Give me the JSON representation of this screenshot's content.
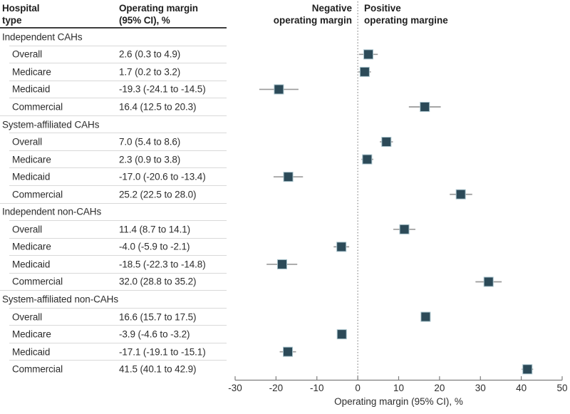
{
  "figure": {
    "table": {
      "header_col1": "Hospital\ntype",
      "header_col2": "Operating margin\n(95% CI), %"
    },
    "annotations": {
      "negative_label": "Negative\noperating margin",
      "positive_label": "Positive\noperating margine"
    }
  },
  "chart_data": {
    "type": "scatter",
    "subtype": "forest-plot",
    "title": "",
    "xlabel": "Operating margin (95% CI), %",
    "xlim": [
      -30,
      50
    ],
    "xticks": [
      -30,
      -20,
      -10,
      0,
      10,
      20,
      30,
      40,
      50
    ],
    "reference_line_x": 0,
    "grid": false,
    "legend": false,
    "marker_color": "#2C4A58",
    "marker_border_color": "#A7C2CB",
    "ci_color": "#9A9A9A",
    "groups": [
      {
        "label": "Independent CAHs",
        "rows": [
          {
            "label": "Overall",
            "text": "2.6 (0.3 to 4.9)",
            "value": 2.6,
            "ci": [
              0.3,
              4.9
            ]
          },
          {
            "label": "Medicare",
            "text": "1.7 (0.2 to 3.2)",
            "value": 1.7,
            "ci": [
              0.2,
              3.2
            ]
          },
          {
            "label": "Medicaid",
            "text": "-19.3 (-24.1 to -14.5)",
            "value": -19.3,
            "ci": [
              -24.1,
              -14.5
            ]
          },
          {
            "label": "Commercial",
            "text": "16.4 (12.5 to 20.3)",
            "value": 16.4,
            "ci": [
              12.5,
              20.3
            ]
          }
        ]
      },
      {
        "label": "System-affiliated CAHs",
        "rows": [
          {
            "label": "Overall",
            "text": "7.0 (5.4 to 8.6)",
            "value": 7.0,
            "ci": [
              5.4,
              8.6
            ]
          },
          {
            "label": "Medicare",
            "text": "2.3 (0.9 to 3.8)",
            "value": 2.3,
            "ci": [
              0.9,
              3.8
            ]
          },
          {
            "label": "Medicaid",
            "text": "-17.0 (-20.6 to -13.4)",
            "value": -17.0,
            "ci": [
              -20.6,
              -13.4
            ]
          },
          {
            "label": "Commercial",
            "text": "25.2 (22.5 to 28.0)",
            "value": 25.2,
            "ci": [
              22.5,
              28.0
            ]
          }
        ]
      },
      {
        "label": "Independent non-CAHs",
        "rows": [
          {
            "label": "Overall",
            "text": "11.4 (8.7 to 14.1)",
            "value": 11.4,
            "ci": [
              8.7,
              14.1
            ]
          },
          {
            "label": "Medicare",
            "text": "-4.0 (-5.9 to -2.1)",
            "value": -4.0,
            "ci": [
              -5.9,
              -2.1
            ]
          },
          {
            "label": "Medicaid",
            "text": "-18.5 (-22.3 to -14.8)",
            "value": -18.5,
            "ci": [
              -22.3,
              -14.8
            ]
          },
          {
            "label": "Commercial",
            "text": "32.0 (28.8 to 35.2)",
            "value": 32.0,
            "ci": [
              28.8,
              35.2
            ]
          }
        ]
      },
      {
        "label": "System-affiliated non-CAHs",
        "rows": [
          {
            "label": "Overall",
            "text": "16.6 (15.7 to 17.5)",
            "value": 16.6,
            "ci": [
              15.7,
              17.5
            ]
          },
          {
            "label": "Medicare",
            "text": "-3.9 (-4.6 to -3.2)",
            "value": -3.9,
            "ci": [
              -4.6,
              -3.2
            ]
          },
          {
            "label": "Medicaid",
            "text": "-17.1 (-19.1 to -15.1)",
            "value": -17.1,
            "ci": [
              -19.1,
              -15.1
            ]
          },
          {
            "label": "Commercial",
            "text": "41.5 (40.1 to 42.9)",
            "value": 41.5,
            "ci": [
              40.1,
              42.9
            ]
          }
        ]
      }
    ]
  }
}
